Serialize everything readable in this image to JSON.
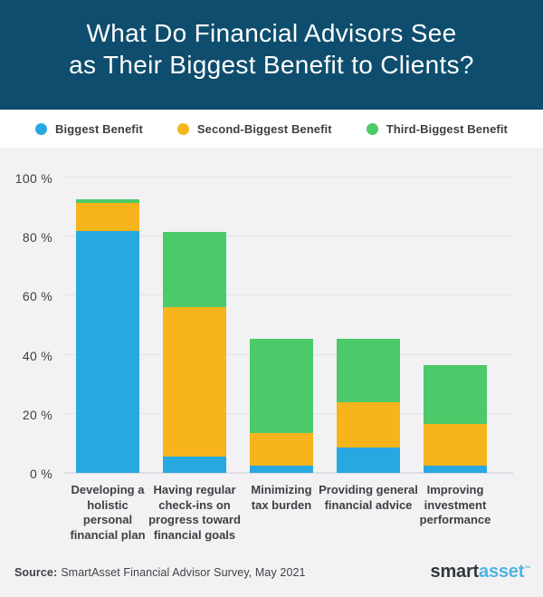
{
  "header": {
    "title_line1": "What Do Financial Advisors See",
    "title_line2": "as Their Biggest Benefit to Clients?",
    "bg_color": "#0e4d6d"
  },
  "legend": {
    "items": [
      {
        "label": "Biggest Benefit",
        "color": "#28a8e0"
      },
      {
        "label": "Second-Biggest Benefit",
        "color": "#f7b41d"
      },
      {
        "label": "Third-Biggest Benefit",
        "color": "#4cc968"
      }
    ]
  },
  "chart_data": {
    "type": "bar",
    "stacked": true,
    "title": "What Do Financial Advisors See as Their Biggest Benefit to Clients?",
    "xlabel": "",
    "ylabel": "",
    "unit": "%",
    "ylim": [
      0,
      100
    ],
    "grid": true,
    "legend_position": "top",
    "yticks": [
      "100 %",
      "80 %",
      "60 %",
      "40 %",
      "20 %",
      "0 %"
    ],
    "categories": [
      "Developing a holistic personal financial plan",
      "Having regular check-ins on progress toward financial goals",
      "Minimizing tax burden",
      "Providing general financial advice",
      "Improving investment performance"
    ],
    "categories_lines": [
      [
        "Developing a",
        "holistic",
        "personal",
        "financial plan"
      ],
      [
        "Having regular",
        "check-ins on",
        "progress toward",
        "financial goals"
      ],
      [
        "Minimizing",
        "tax burden"
      ],
      [
        "Providing general",
        "financial advice"
      ],
      [
        "Improving",
        "investment",
        "performance"
      ]
    ],
    "series": [
      {
        "name": "Biggest Benefit",
        "color": "#28a8e0",
        "values": [
          82,
          5.5,
          2.5,
          8.5,
          2.5
        ]
      },
      {
        "name": "Second-Biggest Benefit",
        "color": "#f7b41d",
        "values": [
          9.5,
          50.5,
          11,
          15.5,
          14
        ]
      },
      {
        "name": "Third-Biggest Benefit",
        "color": "#4cc968",
        "values": [
          1,
          25.5,
          32,
          21.5,
          20
        ]
      }
    ],
    "stack_totals": [
      92.5,
      81.5,
      45.5,
      45.5,
      36.5
    ]
  },
  "footer": {
    "source_label": "Source:",
    "source_text": "SmartAsset Financial Advisor Survey, May 2021",
    "logo": {
      "part1": "smart",
      "part2": "asset",
      "tm": "™",
      "color1": "#33383d",
      "color2": "#4fb3e3"
    }
  }
}
